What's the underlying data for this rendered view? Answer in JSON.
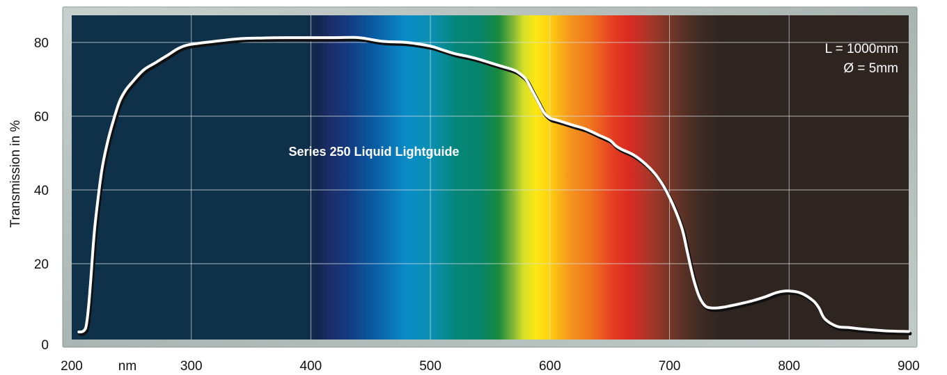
{
  "chart_data": {
    "type": "line",
    "title": "",
    "xlabel": "",
    "x_unit_label": "nm",
    "ylabel": "Transmission in %",
    "xlim": [
      200,
      900
    ],
    "ylim": [
      0,
      88
    ],
    "x_ticks": [
      200,
      300,
      400,
      500,
      600,
      700,
      800,
      900
    ],
    "y_ticks": [
      0,
      20,
      40,
      60,
      80
    ],
    "grid": true,
    "background": "visible light spectrum gradient",
    "series": [
      {
        "name": "Series 250 Liquid Lightguide",
        "x": [
          206,
          208,
          210,
          212,
          214,
          216,
          218,
          220,
          225,
          230,
          235,
          240,
          245,
          250,
          260,
          270,
          280,
          290,
          300,
          320,
          340,
          360,
          380,
          400,
          420,
          440,
          460,
          480,
          500,
          510,
          520,
          530,
          540,
          550,
          560,
          570,
          575,
          580,
          585,
          590,
          595,
          600,
          605,
          610,
          620,
          630,
          640,
          650,
          655,
          660,
          670,
          680,
          690,
          700,
          710,
          715,
          720,
          725,
          730,
          735,
          740,
          745,
          750,
          760,
          770,
          780,
          790,
          800,
          810,
          820,
          825,
          830,
          840,
          850,
          860,
          880,
          900
        ],
        "y": [
          1.5,
          1.5,
          1.8,
          3,
          8,
          16,
          25,
          32,
          45,
          53,
          59,
          64,
          67,
          69,
          72.5,
          74.5,
          76.5,
          78.5,
          79.5,
          80.3,
          81,
          81.2,
          81.3,
          81.3,
          81.3,
          81.3,
          80.3,
          80,
          79,
          78,
          77,
          76.3,
          75.5,
          74.5,
          73.5,
          72.5,
          71.5,
          70,
          67,
          64,
          61,
          59.5,
          59,
          58.5,
          57.5,
          56.5,
          55,
          53.5,
          52,
          51,
          49.5,
          47,
          43.5,
          38,
          30,
          23,
          16,
          11,
          8.5,
          8,
          8,
          8.2,
          8.5,
          9.2,
          10,
          11,
          12.2,
          12.6,
          12,
          10,
          8,
          5,
          3,
          2.7,
          2.3,
          1.8,
          1.6
        ]
      }
    ],
    "annotations": [
      "L = 1000mm",
      "Ø = 5mm"
    ]
  },
  "colors": {
    "frame": "#b0bbb8",
    "plot_dark_blue": "#0e3048",
    "plot_dark_brown": "#2e2420",
    "curve": "#ffffff",
    "curve_shadow": "#101010",
    "grid": "#d8e0e4"
  }
}
